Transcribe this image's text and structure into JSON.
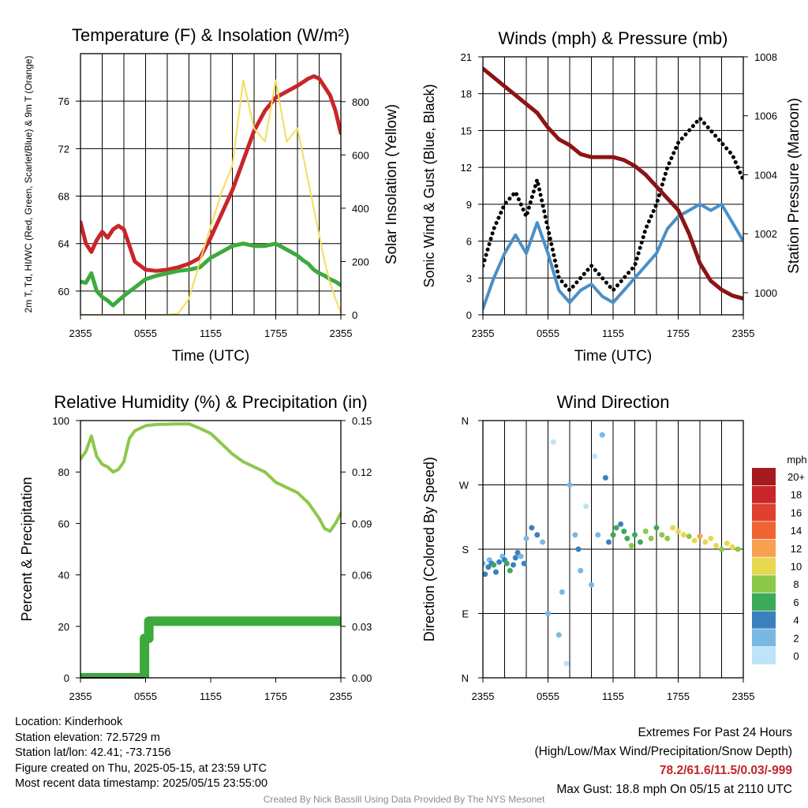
{
  "colors": {
    "temp": "#c8262a",
    "dewpoint": "#3caa3c",
    "insolation": "#f5dc5a",
    "wind": "#4a90c8",
    "gust": "#000000",
    "pressure": "#8c1414",
    "humidity": "#8cc84a",
    "precip": "#3caa3c",
    "frame": "#000000"
  },
  "chart_data": [
    {
      "id": "temp",
      "type": "line",
      "title": "Temperature (F) & Insolation (W/m²)",
      "xlabel": "Time (UTC)",
      "ylabel_left": "2m T, Td, HI/WC (Red, Green, Scarlet/Blue) & 9m T (Orange)",
      "ylabel_right": "Solar Insolation (Yellow)",
      "x_ticks": [
        "2355",
        "0555",
        "1155",
        "1755",
        "2355"
      ],
      "ylim_left": [
        58,
        80
      ],
      "yticks_left": [
        60,
        64,
        68,
        72,
        76
      ],
      "ylim_right": [
        0,
        980
      ],
      "yticks_right": [
        0,
        200,
        400,
        600,
        800
      ],
      "grid": true,
      "x_hours": [
        0,
        0.5,
        1,
        1.5,
        2,
        2.5,
        3,
        3.5,
        4,
        5,
        6,
        7,
        8,
        9,
        10,
        11,
        12,
        13,
        14,
        15,
        16,
        17,
        18,
        19,
        20,
        20.5,
        21,
        21.5,
        22,
        22.5,
        23,
        23.5,
        24
      ],
      "series": [
        {
          "name": "2m T",
          "axis": "left",
          "color_key": "temp",
          "values": [
            65.8,
            64,
            63.3,
            64.3,
            65,
            64.5,
            65.2,
            65.5,
            65.2,
            62.5,
            61.8,
            61.7,
            61.8,
            62,
            62.3,
            62.8,
            64.5,
            66.5,
            68.5,
            71,
            73.5,
            75.2,
            76.3,
            76.8,
            77.3,
            77.6,
            77.9,
            78.1,
            77.9,
            77.2,
            76.5,
            75.2,
            73.3
          ]
        },
        {
          "name": "2m Td",
          "axis": "left",
          "color_key": "dewpoint",
          "values": [
            60.8,
            60.7,
            61.5,
            60,
            59.5,
            59.2,
            58.8,
            59.2,
            59.6,
            60.3,
            61,
            61.3,
            61.5,
            61.7,
            61.8,
            62,
            62.8,
            63.3,
            63.8,
            64,
            63.8,
            63.8,
            64,
            63.5,
            63,
            62.6,
            62.3,
            61.8,
            61.5,
            61.3,
            61,
            60.8,
            60.5
          ]
        },
        {
          "name": "Solar Insolation",
          "axis": "right",
          "color_key": "insolation",
          "values": [
            0,
            0,
            0,
            0,
            0,
            0,
            0,
            0,
            0,
            0,
            0,
            0,
            0,
            5,
            60,
            200,
            330,
            460,
            560,
            880,
            700,
            650,
            880,
            650,
            700,
            600,
            500,
            400,
            300,
            200,
            120,
            60,
            10
          ]
        }
      ]
    },
    {
      "id": "winds",
      "type": "line",
      "title": "Winds (mph) & Pressure (mb)",
      "xlabel": "Time (UTC)",
      "ylabel_left": "Sonic Wind & Gust (Blue, Black)",
      "ylabel_right": "Station Pressure (Maroon)",
      "x_ticks": [
        "2355",
        "0555",
        "1155",
        "1755",
        "2355"
      ],
      "ylim_left": [
        0,
        21
      ],
      "yticks_left": [
        0,
        3,
        6,
        9,
        12,
        15,
        18,
        21
      ],
      "ylim_right": [
        999.25,
        1008
      ],
      "yticks_right": [
        1000,
        1002,
        1004,
        1006,
        1008
      ],
      "grid": true,
      "x_hours": [
        0,
        1,
        2,
        3,
        4,
        5,
        6,
        7,
        8,
        9,
        10,
        11,
        12,
        13,
        14,
        15,
        16,
        17,
        18,
        19,
        20,
        21,
        22,
        23,
        24
      ],
      "series": [
        {
          "name": "Sonic Wind",
          "axis": "left",
          "color_key": "wind",
          "values": [
            0.5,
            3,
            5,
            6.5,
            5,
            7.5,
            5,
            2,
            1,
            2,
            2.5,
            1.5,
            1,
            2,
            3,
            4,
            5,
            7,
            8,
            8.5,
            9,
            8.5,
            9,
            7.5,
            6
          ]
        },
        {
          "name": "Gust",
          "axis": "left",
          "color_key": "gust",
          "values": [
            4,
            7,
            9,
            10,
            8,
            11,
            7,
            3,
            2,
            3,
            4,
            3,
            2,
            3,
            4,
            7,
            9,
            12,
            14,
            15,
            16,
            15,
            14,
            13,
            11
          ]
        },
        {
          "name": "Station Pressure",
          "axis": "right",
          "color_key": "pressure",
          "values": [
            1007.6,
            1007.3,
            1007,
            1006.7,
            1006.4,
            1006.1,
            1005.6,
            1005.2,
            1005,
            1004.7,
            1004.6,
            1004.6,
            1004.6,
            1004.5,
            1004.3,
            1004,
            1003.6,
            1003.2,
            1002.8,
            1002,
            1001,
            1000.4,
            1000.1,
            999.9,
            999.8
          ]
        }
      ]
    },
    {
      "id": "rh",
      "type": "line",
      "title": "Relative Humidity (%) & Precipitation (in)",
      "ylabel_left": "Percent & Precipitation",
      "x_ticks": [
        "2355",
        "0555",
        "1155",
        "1755",
        "2355"
      ],
      "ylim_left": [
        0,
        100
      ],
      "yticks_left": [
        0,
        20,
        40,
        60,
        80,
        100
      ],
      "ylim_right": [
        0,
        0.15
      ],
      "yticks_right": [
        "0.00",
        "0.03",
        "0.06",
        "0.09",
        "0.12",
        "0.15"
      ],
      "grid": false,
      "x_hours": [
        0,
        0.5,
        1,
        1.5,
        2,
        2.5,
        3,
        3.5,
        4,
        4.5,
        5,
        5.5,
        6,
        7,
        8,
        9,
        10,
        11,
        12,
        13,
        14,
        15,
        16,
        17,
        18,
        19,
        20,
        21,
        22,
        22.5,
        23,
        23.5,
        24
      ],
      "series": [
        {
          "name": "Relative Humidity",
          "axis": "left",
          "color_key": "humidity",
          "values": [
            85,
            88,
            94,
            86,
            83,
            82,
            80,
            81,
            84,
            93,
            96,
            97,
            98,
            98.5,
            98.6,
            98.7,
            98.7,
            97,
            95,
            91,
            87,
            84,
            82,
            80,
            76,
            74,
            72,
            68,
            62,
            58,
            57,
            60,
            64
          ]
        },
        {
          "name": "Precipitation",
          "axis": "right",
          "color_key": "precip",
          "step_points": [
            [
              0,
              0
            ],
            [
              5.9,
              0
            ],
            [
              5.9,
              0.023
            ],
            [
              6.3,
              0.023
            ],
            [
              6.3,
              0.033
            ],
            [
              24,
              0.033
            ]
          ]
        }
      ]
    },
    {
      "id": "wdir",
      "type": "scatter",
      "title": "Wind Direction",
      "ylabel_left": "Direction (Colored By Speed)",
      "x_ticks": [
        "2355",
        "0555",
        "1155",
        "1755",
        "2355"
      ],
      "yticks_left": [
        "N",
        "E",
        "S",
        "W",
        "N"
      ],
      "ylim_left": [
        0,
        360
      ],
      "grid": true,
      "legend_title": "mph",
      "legend_labels": [
        "20+",
        "18",
        "16",
        "14",
        "12",
        "10",
        "8",
        "6",
        "4",
        "2",
        "0"
      ],
      "legend_colors": [
        "#a51a1e",
        "#c8262a",
        "#e0402e",
        "#f06432",
        "#f8a050",
        "#e8d850",
        "#8cc84a",
        "#3caa5a",
        "#3a80be",
        "#7ab8e4",
        "#bde4f8"
      ],
      "points_hr": [
        0,
        0.2,
        0.5,
        0.6,
        0.8,
        1,
        1.2,
        1.5,
        1.8,
        2,
        2.2,
        2.5,
        2.8,
        3,
        3.2,
        3.5,
        3.8,
        4,
        4.5,
        5,
        5.5,
        6,
        6.5,
        7,
        7.3,
        7.7,
        8,
        8.5,
        8.8,
        9,
        9.5,
        10,
        10.3,
        10.6,
        11,
        11.3,
        11.6,
        12,
        12.3,
        12.7,
        13,
        13.3,
        13.7,
        14,
        14.5,
        15,
        15.5,
        16,
        16.5,
        17,
        17.5,
        18,
        18.5,
        19,
        19.5,
        20,
        20.5,
        21,
        21.5,
        22,
        22.5,
        23,
        23.5
      ],
      "points_deg": [
        160,
        145,
        155,
        165,
        160,
        158,
        148,
        162,
        170,
        165,
        160,
        150,
        158,
        168,
        175,
        170,
        160,
        195,
        210,
        200,
        190,
        90,
        330,
        60,
        120,
        20,
        270,
        200,
        180,
        150,
        240,
        130,
        310,
        200,
        340,
        280,
        190,
        200,
        210,
        215,
        205,
        195,
        185,
        200,
        190,
        205,
        195,
        210,
        200,
        195,
        210,
        205,
        200,
        198,
        192,
        198,
        190,
        195,
        185,
        180,
        188,
        183,
        180
      ],
      "points_speed": [
        2,
        4,
        3,
        2,
        4,
        6,
        4,
        3,
        2,
        4,
        5,
        6,
        4,
        4,
        3,
        2,
        4,
        2,
        3,
        4,
        2,
        1,
        0,
        1,
        1,
        0,
        1,
        2,
        3,
        2,
        0,
        2,
        0,
        1,
        1,
        3,
        4,
        5,
        6,
        4,
        5,
        6,
        7,
        6,
        5,
        7,
        8,
        6,
        7,
        8,
        9,
        10,
        9,
        8,
        10,
        11,
        9,
        10,
        9,
        8,
        9,
        10,
        8
      ]
    }
  ],
  "footer": {
    "location": "Location: Kinderhook",
    "elevation": "Station elevation: 72.5729 m",
    "latlon": "Station lat/lon: 42.41; -73.7156",
    "created": "Figure created on Thu, 2025-05-15, at 23:59 UTC",
    "recent": "Most recent data timestamp: 2025/05/15 23:55:00",
    "extremes_title": "Extremes For Past 24 Hours",
    "extremes_subtitle": "(High/Low/Max Wind/Precipitation/Snow Depth)",
    "extremes_values": "78.2/61.6/11.5/0.03/-999",
    "max_gust": "Max Gust: 18.8 mph On 05/15 at 2110 UTC",
    "credit": "Created By Nick Bassill Using Data Provided By The NYS Mesonet"
  }
}
